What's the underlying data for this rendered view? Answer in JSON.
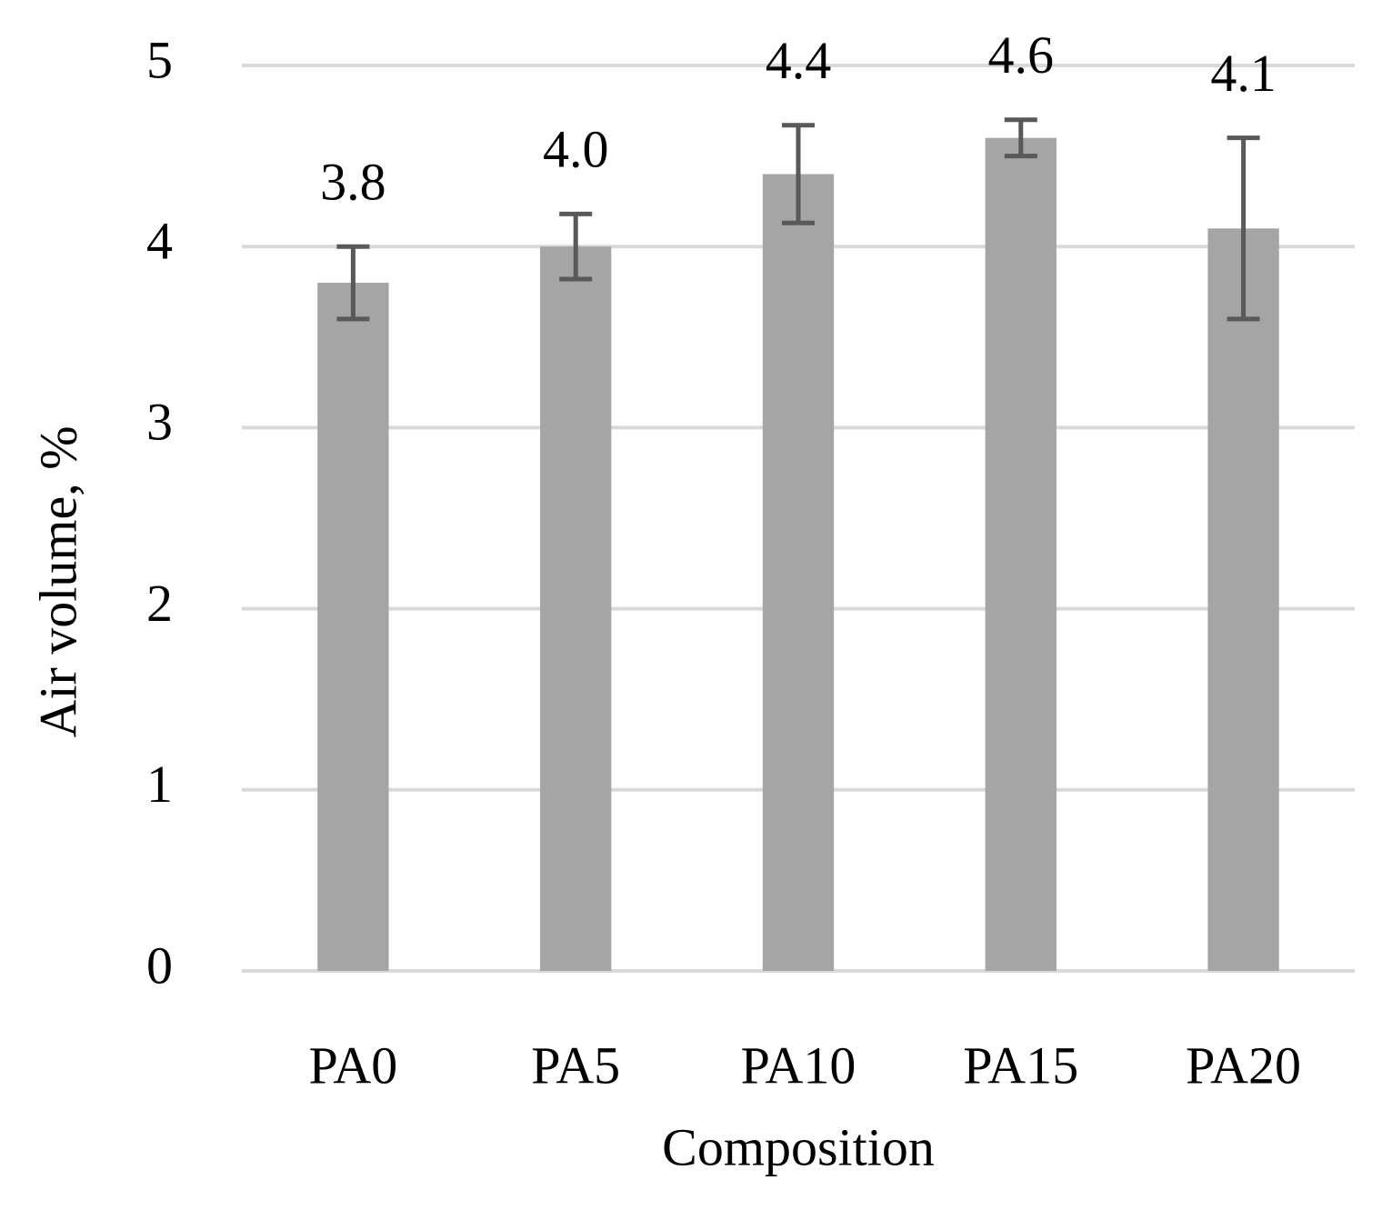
{
  "chart_data": {
    "type": "bar",
    "categories": [
      "PA0",
      "PA5",
      "PA10",
      "PA15",
      "PA20"
    ],
    "values": [
      3.8,
      4.0,
      4.4,
      4.6,
      4.1
    ],
    "value_labels": [
      "3.8",
      "4.0",
      "4.4",
      "4.6",
      "4.1"
    ],
    "errors": [
      0.2,
      0.18,
      0.27,
      0.1,
      0.5
    ],
    "color": "#a5a5a5",
    "error_color": "#595959",
    "ylim": [
      0,
      5
    ],
    "yticks": [
      0,
      1,
      2,
      3,
      4,
      5
    ],
    "grid": true,
    "x_label": "Composition",
    "y_label": "Air volume, %"
  }
}
